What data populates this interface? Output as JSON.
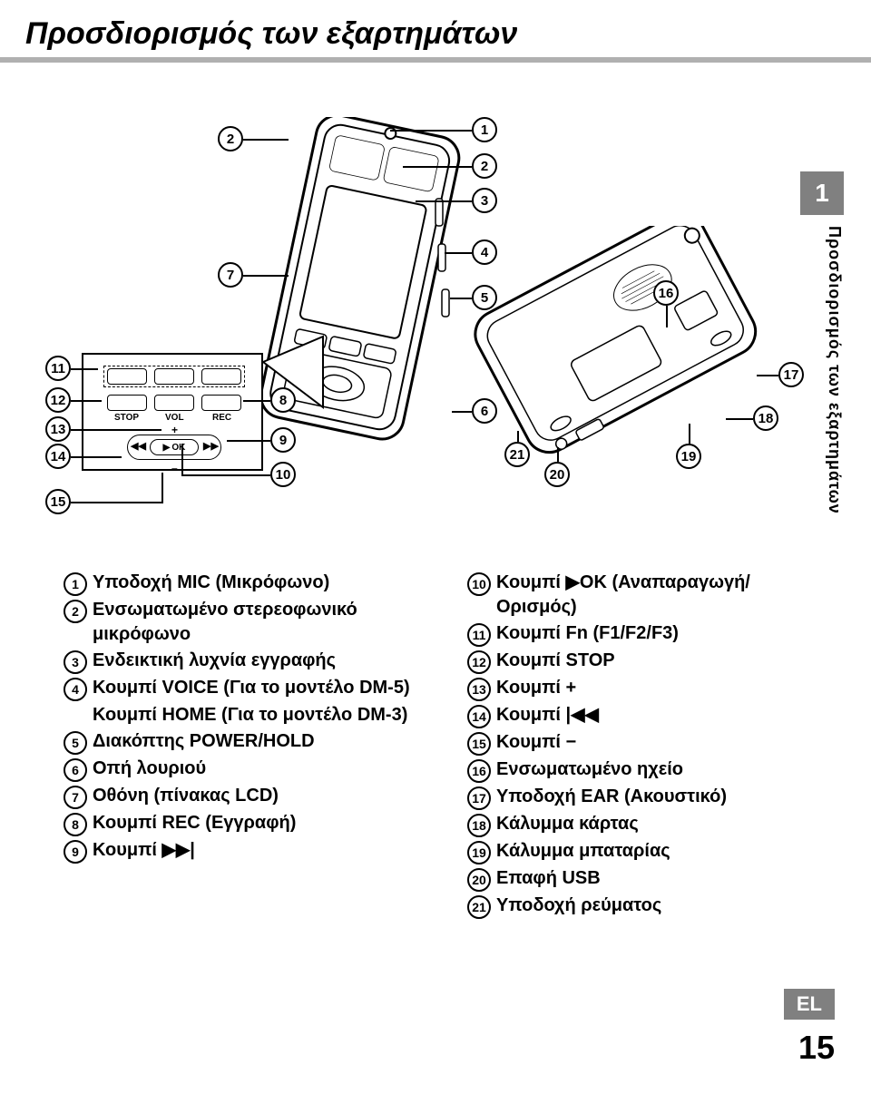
{
  "page": {
    "title": "Προσδιορισμός των εξαρτημάτων",
    "side_tab_number": "1",
    "side_label": "Προσδιορισμός των εξαρτημάτων",
    "lang_tag": "EL",
    "page_number": "15"
  },
  "inset": {
    "label_stop": "STOP",
    "label_vol": "VOL",
    "label_rec": "REC",
    "label_ok": "OK",
    "plus": "+",
    "minus": "–"
  },
  "callouts": {
    "c1": "1",
    "c2": "2",
    "c3": "3",
    "c4": "4",
    "c5": "5",
    "c6": "6",
    "c7": "7",
    "c8": "8",
    "c9": "9",
    "c10": "10",
    "c11": "11",
    "c12": "12",
    "c13": "13",
    "c14": "14",
    "c15": "15",
    "c16": "16",
    "c17": "17",
    "c18": "18",
    "c19": "19",
    "c20": "20",
    "c21": "21"
  },
  "legend_left": [
    {
      "n": "1",
      "text": "Υποδοχή MIC (Μικρόφωνο)"
    },
    {
      "n": "2",
      "text": "Ενσωματωμένο στερεοφωνικό μικρόφωνο"
    },
    {
      "n": "3",
      "text": "Ενδεικτική λυχνία εγγραφής"
    },
    {
      "n": "4",
      "text": "Κουμπί VOICE (Για το μοντέλο DM-5)",
      "extra": "Κουμπί HOME (Για το μοντέλο DM-3)"
    },
    {
      "n": "5",
      "text": "Διακόπτης POWER/HOLD"
    },
    {
      "n": "6",
      "text": "Οπή λουριού"
    },
    {
      "n": "7",
      "text": "Οθόνη (πίνακας LCD)"
    },
    {
      "n": "8",
      "text": "Κουμπί REC (Εγγραφή)"
    },
    {
      "n": "9",
      "text": "Κουμπί ▶▶|"
    }
  ],
  "legend_right": [
    {
      "n": "10",
      "text": "Κουμπί ▶OK (Αναπαραγωγή/ Ορισμός)"
    },
    {
      "n": "11",
      "text": "Κουμπί Fn (F1/F2/F3)"
    },
    {
      "n": "12",
      "text": "Κουμπί STOP"
    },
    {
      "n": "13",
      "text": "Κουμπί +"
    },
    {
      "n": "14",
      "text": "Κουμπί |◀◀"
    },
    {
      "n": "15",
      "text": "Κουμπί −"
    },
    {
      "n": "16",
      "text": "Ενσωματωμένο ηχείο"
    },
    {
      "n": "17",
      "text": "Υποδοχή EAR (Ακουστικό)"
    },
    {
      "n": "18",
      "text": "Κάλυμμα κάρτας"
    },
    {
      "n": "19",
      "text": "Κάλυμμα μπαταρίας"
    },
    {
      "n": "20",
      "text": "Επαφή USB"
    },
    {
      "n": "21",
      "text": "Υποδοχή ρεύματος"
    }
  ],
  "colors": {
    "text": "#000000",
    "bg": "#ffffff",
    "accent": "#808080",
    "underline": "#b0b0b0"
  }
}
